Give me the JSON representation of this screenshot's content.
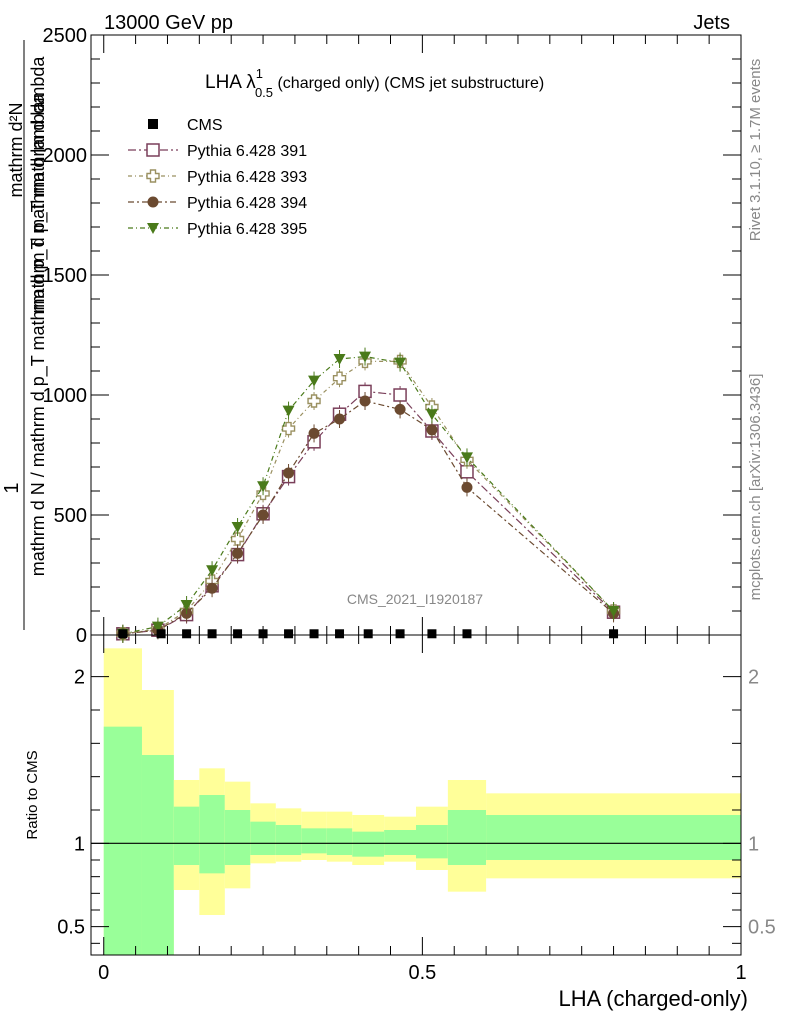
{
  "header": {
    "left": "13000 GeV pp",
    "right": "Jets"
  },
  "side_labels": {
    "rivet": "Rivet 3.1.10, ≥ 1.7M events",
    "mcplots": "mcplots.cern.ch [arXiv:1306.3436]"
  },
  "watermark": "CMS_2021_I1920187",
  "colors": {
    "band_inner": "#99ff99",
    "band_outer": "#ffff99",
    "s391": "#7a3f5a",
    "s393": "#9a9060",
    "s394": "#6b4a30",
    "s395": "#4a7a1a",
    "cms": "#000000"
  },
  "chart_data": [
    {
      "type": "line",
      "title": {
        "main": "LHA λ",
        "sup": "1",
        "sub": "0.5",
        "rest": " (charged only) (CMS jet substructure)"
      },
      "ylabel": {
        "numer": "1",
        "denom": "mathrm d N / mathrm d p_T mathrm d p_T mathrm d lambda",
        "lines": [
          "mathrm d²N",
          "mathrm d p_T mathrm d lambda"
        ]
      },
      "xlim": [
        -0.02,
        1.0
      ],
      "ylim": [
        0,
        2500
      ],
      "yticks": [
        0,
        500,
        1000,
        1500,
        2000,
        2500
      ],
      "yticklabels": [
        "0",
        "500",
        "1000",
        "1500",
        "2000",
        "2500"
      ],
      "grid": false,
      "legend_position": "top-left",
      "cms": {
        "name": "CMS",
        "x": [
          0.03,
          0.09,
          0.13,
          0.17,
          0.21,
          0.25,
          0.29,
          0.33,
          0.37,
          0.415,
          0.465,
          0.515,
          0.57,
          0.8
        ],
        "y": [
          3,
          3,
          3,
          3,
          3,
          3,
          3,
          3,
          3,
          3,
          3,
          3,
          3,
          3
        ]
      },
      "series": [
        {
          "name": "Pythia 6.428 391",
          "marker": "open-square",
          "x": [
            0.03,
            0.085,
            0.13,
            0.17,
            0.21,
            0.25,
            0.29,
            0.33,
            0.37,
            0.41,
            0.465,
            0.515,
            0.57,
            0.8
          ],
          "y": [
            5,
            20,
            85,
            205,
            335,
            505,
            660,
            805,
            920,
            1015,
            1000,
            850,
            680,
            95
          ]
        },
        {
          "name": "Pythia 6.428 393",
          "marker": "open-cross",
          "x": [
            0.03,
            0.085,
            0.13,
            0.17,
            0.21,
            0.25,
            0.29,
            0.33,
            0.37,
            0.41,
            0.465,
            0.515,
            0.57,
            0.8
          ],
          "y": [
            5,
            25,
            100,
            225,
            400,
            590,
            860,
            975,
            1070,
            1140,
            1140,
            950,
            730,
            100
          ]
        },
        {
          "name": "Pythia 6.428 394",
          "marker": "filled-circle",
          "x": [
            0.03,
            0.085,
            0.13,
            0.17,
            0.21,
            0.25,
            0.29,
            0.33,
            0.37,
            0.41,
            0.465,
            0.515,
            0.57,
            0.8
          ],
          "y": [
            5,
            20,
            90,
            195,
            340,
            500,
            675,
            840,
            900,
            975,
            940,
            855,
            615,
            90
          ]
        },
        {
          "name": "Pythia 6.428 395",
          "marker": "filled-triangle-down",
          "x": [
            0.03,
            0.085,
            0.13,
            0.17,
            0.21,
            0.25,
            0.29,
            0.33,
            0.37,
            0.41,
            0.465,
            0.515,
            0.57,
            0.8
          ],
          "y": [
            5,
            35,
            125,
            270,
            450,
            620,
            935,
            1060,
            1150,
            1160,
            1135,
            920,
            740,
            100
          ]
        }
      ]
    },
    {
      "type": "area",
      "ylabel": "Ratio to CMS",
      "xlabel": "LHA (charged-only)",
      "xlim": [
        -0.02,
        1.0
      ],
      "ylim": [
        0.33,
        2.25
      ],
      "xticks": [
        0,
        0.5,
        1
      ],
      "xticklabels": [
        "0",
        "0.5",
        "1"
      ],
      "yticks": [
        0.5,
        1,
        2
      ],
      "yticklabels": [
        "0.5",
        "1",
        "2"
      ],
      "reference_line": 1,
      "bins": [
        {
          "lo": 0.0,
          "hi": 0.06,
          "inner": [
            0.33,
            1.7
          ],
          "outer": [
            0.33,
            2.17
          ]
        },
        {
          "lo": 0.06,
          "hi": 0.11,
          "inner": [
            0.33,
            1.53
          ],
          "outer": [
            0.33,
            1.92
          ]
        },
        {
          "lo": 0.11,
          "hi": 0.15,
          "inner": [
            0.87,
            1.22
          ],
          "outer": [
            0.72,
            1.38
          ]
        },
        {
          "lo": 0.15,
          "hi": 0.19,
          "inner": [
            0.82,
            1.29
          ],
          "outer": [
            0.57,
            1.45
          ]
        },
        {
          "lo": 0.19,
          "hi": 0.23,
          "inner": [
            0.87,
            1.2
          ],
          "outer": [
            0.73,
            1.37
          ]
        },
        {
          "lo": 0.23,
          "hi": 0.27,
          "inner": [
            0.93,
            1.13
          ],
          "outer": [
            0.88,
            1.24
          ]
        },
        {
          "lo": 0.27,
          "hi": 0.31,
          "inner": [
            0.93,
            1.11
          ],
          "outer": [
            0.89,
            1.21
          ]
        },
        {
          "lo": 0.31,
          "hi": 0.35,
          "inner": [
            0.94,
            1.09
          ],
          "outer": [
            0.9,
            1.19
          ]
        },
        {
          "lo": 0.35,
          "hi": 0.39,
          "inner": [
            0.93,
            1.09
          ],
          "outer": [
            0.89,
            1.19
          ]
        },
        {
          "lo": 0.39,
          "hi": 0.44,
          "inner": [
            0.92,
            1.07
          ],
          "outer": [
            0.87,
            1.17
          ]
        },
        {
          "lo": 0.44,
          "hi": 0.49,
          "inner": [
            0.93,
            1.08
          ],
          "outer": [
            0.89,
            1.16
          ]
        },
        {
          "lo": 0.49,
          "hi": 0.54,
          "inner": [
            0.91,
            1.11
          ],
          "outer": [
            0.84,
            1.22
          ]
        },
        {
          "lo": 0.54,
          "hi": 0.6,
          "inner": [
            0.87,
            1.2
          ],
          "outer": [
            0.71,
            1.38
          ]
        },
        {
          "lo": 0.6,
          "hi": 1.0,
          "inner": [
            0.9,
            1.17
          ],
          "outer": [
            0.79,
            1.3
          ]
        }
      ]
    }
  ]
}
